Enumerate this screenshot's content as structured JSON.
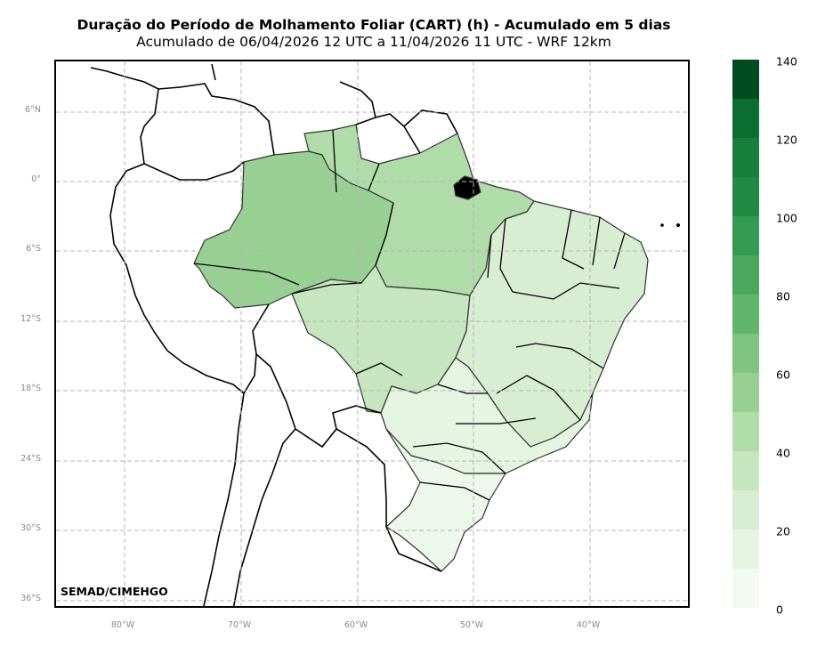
{
  "title": "Duração do Período de Molhamento Foliar (CART) (h) - Acumulado em 5 dias",
  "subtitle": "Acumulado de 06/04/2026 12 UTC a 11/04/2026 11 UTC - WRF 12km",
  "credit": "SEMAD/CIMEHGO",
  "lat_labels": [
    "6°N",
    "0°",
    "6°S",
    "12°S",
    "18°S",
    "24°S",
    "30°S",
    "36°S"
  ],
  "lon_labels": [
    "80°W",
    "70°W",
    "60°W",
    "50°W",
    "40°W"
  ],
  "colorbar": {
    "min": 0,
    "max": 140,
    "step": 10,
    "tick_labels": [
      "0",
      "20",
      "40",
      "60",
      "80",
      "100",
      "120",
      "140"
    ],
    "colors": [
      "#f3faf1",
      "#e6f4e2",
      "#d7eed2",
      "#c5e6be",
      "#b0dca9",
      "#98d094",
      "#7fc47f",
      "#62b66b",
      "#49a85c",
      "#359a51",
      "#238a45",
      "#177e3c",
      "#0b6d2f",
      "#004c1f"
    ]
  },
  "map_fill_colors": {
    "amazon": "#98d094",
    "north": "#b0dca9",
    "central_west": "#c5e6be",
    "northeast": "#d7eed2",
    "southeast": "#e6f4e2",
    "south": "#eef7eb",
    "amapa_marajo": "#000000"
  }
}
